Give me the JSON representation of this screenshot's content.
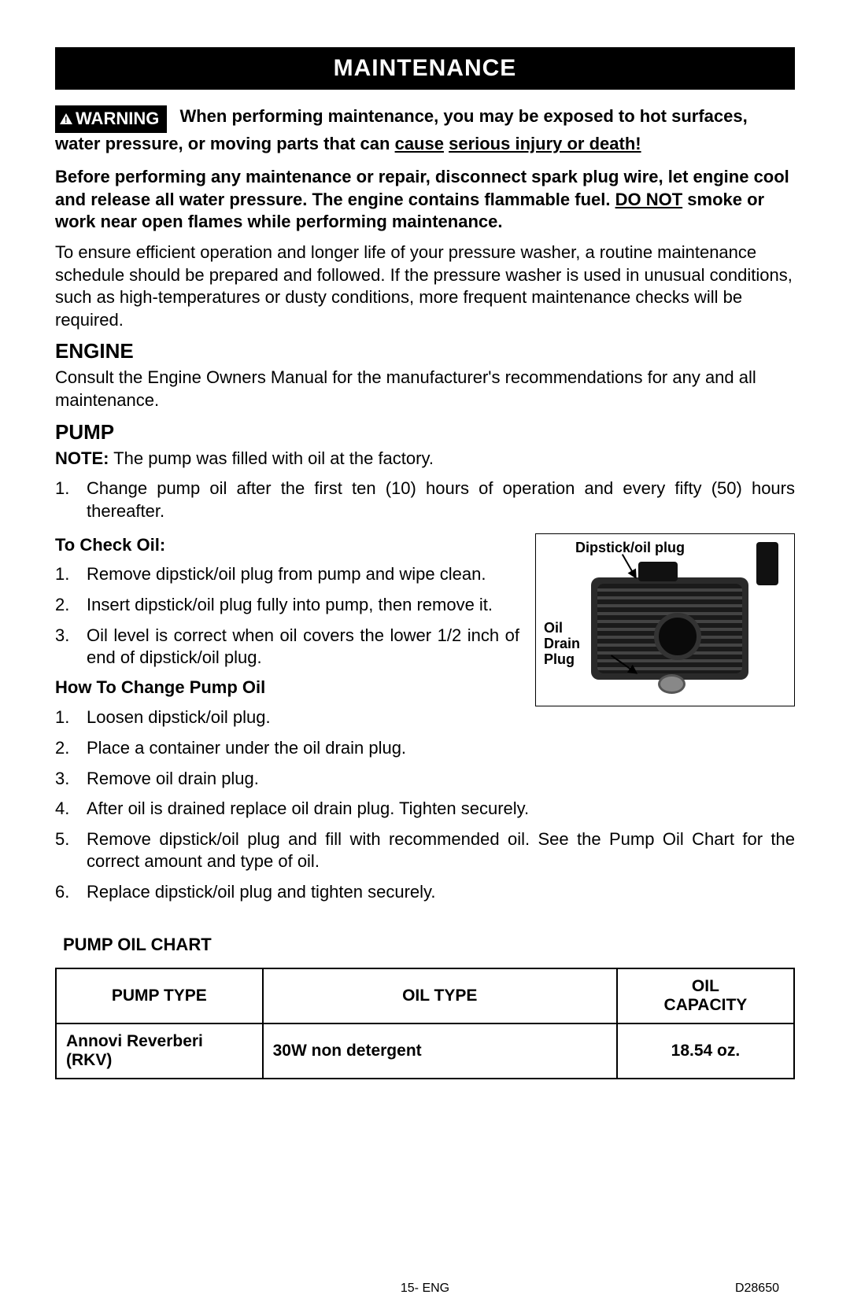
{
  "header": "MAINTENANCE",
  "warning": {
    "badge": "WARNING",
    "line1a": "When performing maintenance, you may be exposed to hot surfaces, water pressure, or moving parts that can ",
    "cause": "cause",
    "line1b": " ",
    "injury": "serious injury or death!"
  },
  "precaution": {
    "p1a": "Before performing any maintenance or repair, disconnect spark plug wire, let engine cool and release all water pressure. The engine contains flammable fuel.  ",
    "donot": "DO NOT",
    "p1b": " smoke or work near open flames while performing maintenance."
  },
  "intro": "To ensure efficient operation and longer life of your pressure washer, a routine maintenance schedule should be prepared and followed. If the pressure washer is used in unusual conditions, such as high-temperatures or dusty conditions, more frequent maintenance checks will be required.",
  "engine": {
    "title": "ENGINE",
    "text": "Consult the Engine Owners Manual for the manufacturer's recommendations for any and all maintenance."
  },
  "pump": {
    "title": "PUMP",
    "note_label": "NOTE:",
    "note_text": " The pump was filled with oil at the factory.",
    "step1_num": "1.",
    "step1": "Change pump oil after the first ten (10) hours of operation and every fifty (50) hours thereafter.",
    "check_title": "To Check Oil:",
    "check": [
      "Remove dipstick/oil plug from pump and wipe clean.",
      "Insert dipstick/oil plug fully into pump, then remove it.",
      "Oil level is correct when oil covers the lower 1/2 inch of end of dipstick/oil plug."
    ],
    "change_title": "How To Change Pump Oil",
    "change": [
      "Loosen dipstick/oil plug.",
      "Place a container under the oil drain plug.",
      "Remove oil drain plug.",
      "After oil is drained replace oil drain plug. Tighten securely.",
      "Remove dipstick/oil plug and fill with recommended oil.  See the Pump Oil Chart for the correct amount and type of oil.",
      "Replace dipstick/oil plug and tighten securely."
    ]
  },
  "figure": {
    "label1": "Dipstick/oil plug",
    "label2": "Oil\nDrain\nPlug"
  },
  "chart": {
    "title": "PUMP OIL CHART",
    "columns": [
      "PUMP TYPE",
      "OIL TYPE",
      "OIL CAPACITY"
    ],
    "rows": [
      [
        "Annovi Reverberi (RKV)",
        "30W non detergent",
        "18.54 oz."
      ]
    ],
    "col_widths": [
      "28%",
      "48%",
      "24%"
    ]
  },
  "footer": {
    "center": "15- ENG",
    "right": "D28650"
  }
}
